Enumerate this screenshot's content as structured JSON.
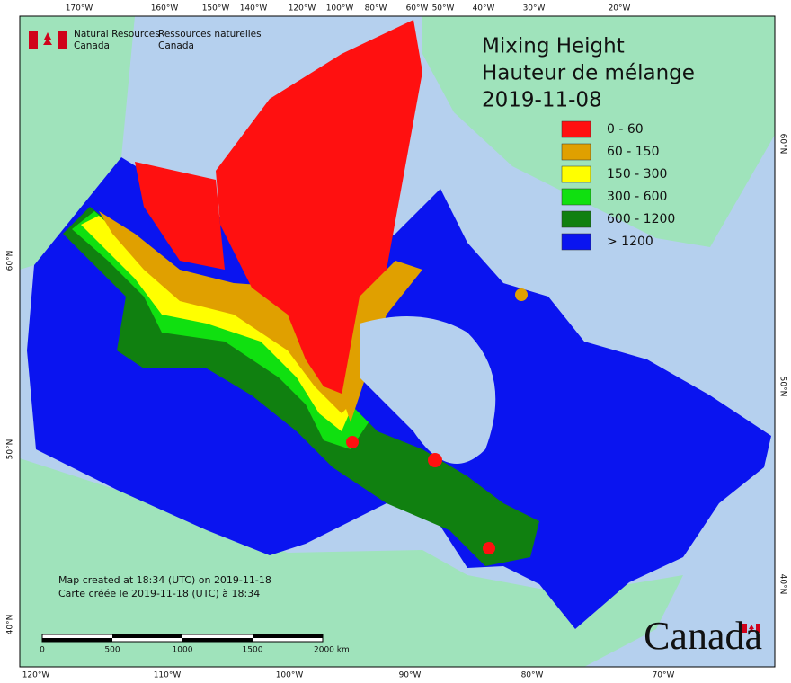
{
  "header": {
    "title_en": "Mixing Height",
    "title_fr": "Hauteur de mélange",
    "date": "2019-11-08"
  },
  "agency": {
    "en": [
      "Natural Resources",
      "Canada"
    ],
    "fr": [
      "Ressources naturelles",
      "Canada"
    ]
  },
  "legend": [
    {
      "label": "0 - 60",
      "color": "#ff1010"
    },
    {
      "label": "60 - 150",
      "color": "#e0a000"
    },
    {
      "label": "150 - 300",
      "color": "#ffff00"
    },
    {
      "label": "300 - 600",
      "color": "#10e010"
    },
    {
      "label": "600 - 1200",
      "color": "#108010"
    },
    {
      "label": "> 1200",
      "color": "#0a14f0"
    }
  ],
  "graticule": {
    "top": [
      "170°W",
      "160°W",
      "150°W",
      "140°W",
      "120°W",
      "100°W",
      "80°W",
      "60°W",
      "50°W",
      "40°W",
      "30°W",
      "20°W"
    ],
    "bottom": [
      "120°W",
      "110°W",
      "100°W",
      "90°W",
      "80°W",
      "70°W"
    ],
    "left": [
      "60°N",
      "50°N",
      "40°N"
    ],
    "right": [
      "60°N",
      "50°N",
      "40°N"
    ]
  },
  "scale_bar": [
    "0",
    "500",
    "1000",
    "1500",
    "2000 km"
  ],
  "footnote": [
    "Map created at 18:34 (UTC) on 2019-11-18",
    "Carte créée le 2019-11-18 (UTC) à 18:34"
  ],
  "wordmark": "Canada"
}
